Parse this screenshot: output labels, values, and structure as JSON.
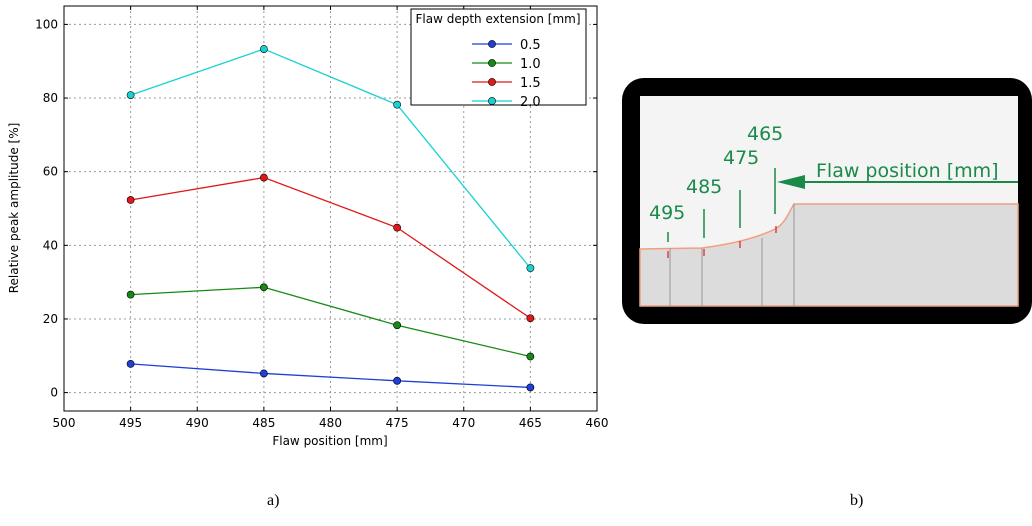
{
  "chart_data": {
    "type": "line",
    "xlabel": "Flaw position [mm]",
    "ylabel": "Relative peak amplitude [%]",
    "xlim": [
      500,
      460
    ],
    "ylim": [
      -5,
      105
    ],
    "x_ticks": [
      500,
      495,
      490,
      485,
      480,
      475,
      470,
      465,
      460
    ],
    "y_ticks": [
      0,
      20,
      40,
      60,
      80,
      100
    ],
    "grid": true,
    "legend": {
      "title": "Flaw depth extension [mm]",
      "placement": "top-right"
    },
    "x": [
      495,
      485,
      475,
      465
    ],
    "series": [
      {
        "name": "0.5",
        "color": "#1f3fd8",
        "values": [
          7.8,
          5.2,
          3.2,
          1.4
        ]
      },
      {
        "name": "1.0",
        "color": "#148a14",
        "values": [
          26.6,
          28.6,
          18.3,
          9.8
        ]
      },
      {
        "name": "1.5",
        "color": "#e01818",
        "values": [
          52.3,
          58.4,
          44.8,
          20.2
        ]
      },
      {
        "name": "2.0",
        "color": "#18d2d2",
        "values": [
          80.8,
          93.3,
          78.2,
          33.8
        ]
      }
    ]
  },
  "diagram": {
    "position_labels": [
      "465",
      "475",
      "485",
      "495"
    ],
    "arrow_label": "Flaw position [mm]",
    "label_color": "#1a8a4a"
  },
  "captions": {
    "a": "a)",
    "b": "b)"
  }
}
